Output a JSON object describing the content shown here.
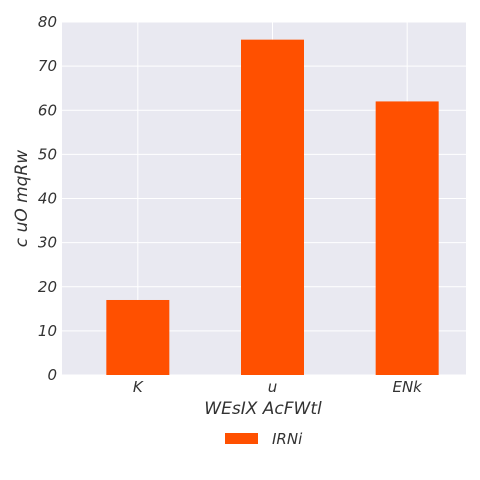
{
  "chart_data": {
    "type": "bar",
    "title": "",
    "xlabel": "WEsIX  AcFWtl",
    "ylabel": "c uO mqRw",
    "categories": [
      "K",
      "u",
      "ENk"
    ],
    "series": [
      {
        "name": "IRNi",
        "values": [
          17,
          76,
          62
        ],
        "color": "#ff5000"
      }
    ],
    "ylim": [
      0,
      80
    ],
    "yticks": [
      0,
      10,
      20,
      30,
      40,
      50,
      60,
      70,
      80
    ],
    "grid": true,
    "legend_position": "bottom-center",
    "background_color": "#e9e9f1",
    "grid_color": "#ffffff"
  }
}
